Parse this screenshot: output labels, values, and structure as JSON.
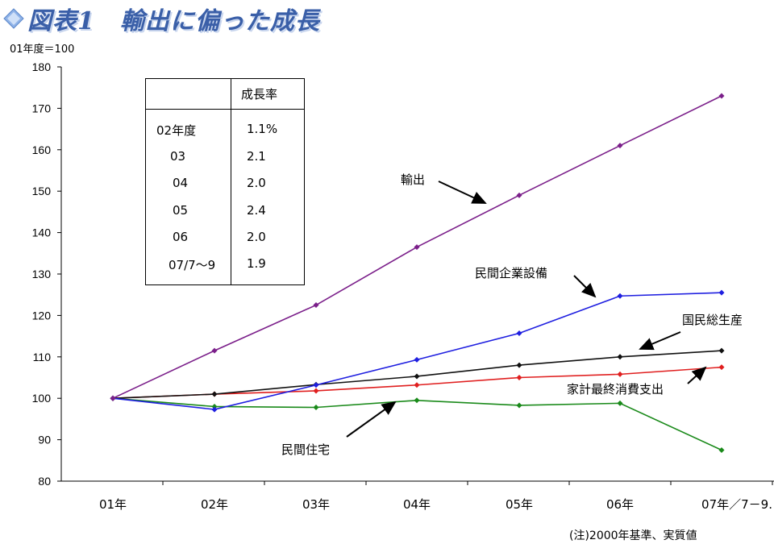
{
  "header": {
    "title": "図表1　輸出に偏った成長",
    "units": "01年度＝100"
  },
  "table": {
    "header": "成長率",
    "rows": [
      {
        "year": "02年度",
        "rate": "1.1%"
      },
      {
        "year": "03",
        "rate": "2.1"
      },
      {
        "year": "04",
        "rate": "2.0"
      },
      {
        "year": "05",
        "rate": "2.4"
      },
      {
        "year": "06",
        "rate": "2.0"
      },
      {
        "year": "07/7～9",
        "rate": "1.9"
      }
    ]
  },
  "note": "(注)2000年基準、実質値",
  "colors": {
    "exports": "#7b1f8a",
    "capex": "#1f1fe0",
    "gdp": "#111111",
    "consumption": "#e01f1f",
    "housing": "#1a8a1a",
    "title": "#3a5fa8"
  },
  "chart_data": {
    "type": "line",
    "categories": [
      "01年",
      "02年",
      "03年",
      "04年",
      "05年",
      "06年",
      "07年／7－9."
    ],
    "ylim": [
      80,
      180
    ],
    "yticks": [
      80,
      90,
      100,
      110,
      120,
      130,
      140,
      150,
      160,
      170,
      180
    ],
    "series": [
      {
        "name": "輸出",
        "values": [
          100,
          111.5,
          122.5,
          136.5,
          149,
          161,
          173
        ]
      },
      {
        "name": "民間企業設備",
        "values": [
          100,
          97.3,
          103.2,
          109.3,
          115.7,
          124.7,
          125.5
        ]
      },
      {
        "name": "国民総生産",
        "values": [
          100,
          101,
          103.3,
          105.3,
          108,
          110,
          111.5
        ]
      },
      {
        "name": "家計最終消費支出",
        "values": [
          100,
          101,
          101.8,
          103.2,
          105,
          105.8,
          107.5
        ]
      },
      {
        "name": "民間住宅",
        "values": [
          100,
          98,
          97.8,
          99.5,
          98.3,
          98.8,
          87.5
        ]
      }
    ]
  }
}
